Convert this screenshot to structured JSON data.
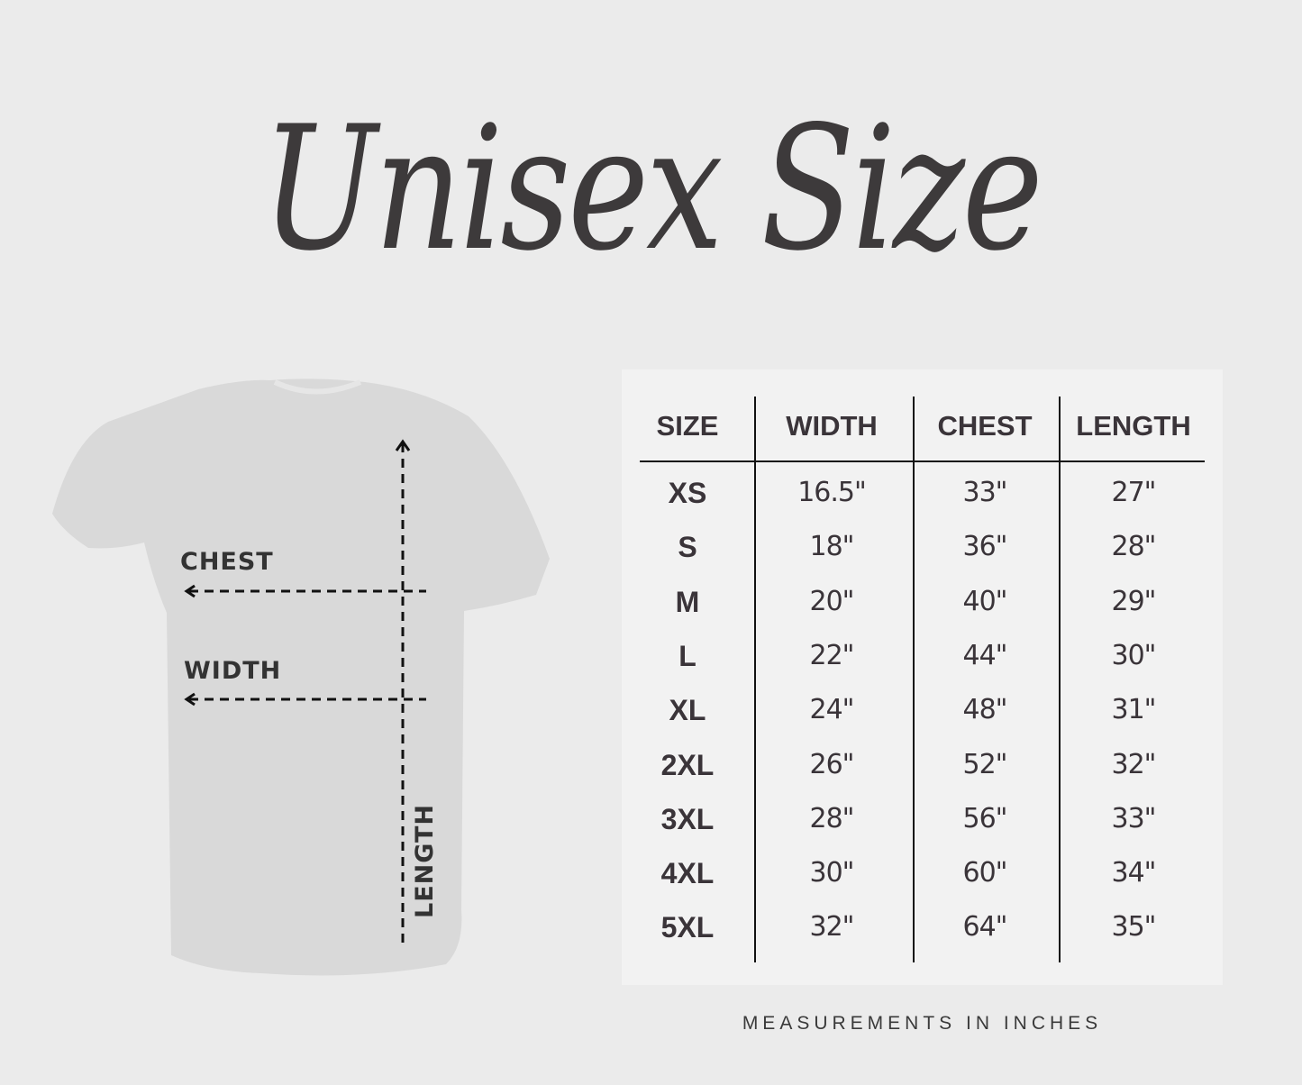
{
  "title": "Unisex Size",
  "shirt_labels": {
    "chest": "CHEST",
    "width": "WIDTH",
    "length": "LENGTH"
  },
  "table": {
    "headers": [
      "SIZE",
      "WIDTH",
      "CHEST",
      "LENGTH"
    ],
    "rows": [
      [
        "XS",
        "16.5\"",
        "33\"",
        "27\""
      ],
      [
        "S",
        "18\"",
        "36\"",
        "28\""
      ],
      [
        "M",
        "20\"",
        "40\"",
        "29\""
      ],
      [
        "L",
        "22\"",
        "44\"",
        "30\""
      ],
      [
        "XL",
        "24\"",
        "48\"",
        "31\""
      ],
      [
        "2XL",
        "26\"",
        "52\"",
        "32\""
      ],
      [
        "3XL",
        "28\"",
        "56\"",
        "33\""
      ],
      [
        "4XL",
        "30\"",
        "60\"",
        "34\""
      ],
      [
        "5XL",
        "32\"",
        "64\"",
        "35\""
      ]
    ]
  },
  "footnote": "MEASUREMENTS IN INCHES",
  "colors": {
    "background": "#ebebeb",
    "panel": "#f2f2f2",
    "text": "#3a3439",
    "shirt": "#d9d9d9"
  }
}
